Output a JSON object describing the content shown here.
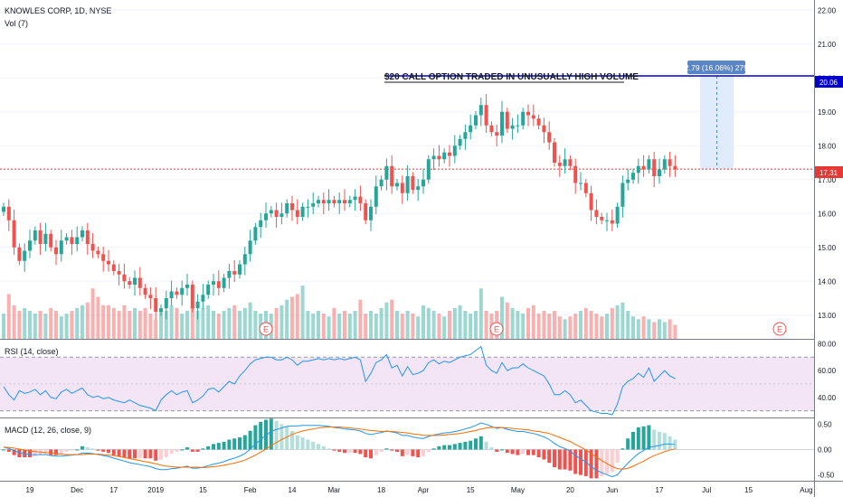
{
  "header": {
    "symbol": "KNOWLES CORP, 1D, NYSE",
    "volume_label": "Vol (7)",
    "annotation": "$20 CALL OPTION TRADED IN UNUSUALLY HIGH VOLUME",
    "measure_label": "2.79 (16.06%) 279",
    "last_price_label": "17.31",
    "target_price_label": "20.06",
    "earnings_marker": "E"
  },
  "colors": {
    "up": "#26a69a",
    "down": "#ef5350",
    "rsi_line": "#2196f3",
    "macd_line": "#2196f3",
    "signal_line": "#ff6d00",
    "target_line": "#0000cc",
    "last_price": "#e53935",
    "rsi_band": "#f3e5f5",
    "measure_box": "#dbe9fb"
  },
  "chart_data": [
    {
      "type": "candlestick",
      "title": "KNOWLES CORP, 1D, NYSE",
      "ylim": [
        12.3,
        22.3
      ],
      "yticks": [
        "13.00",
        "14.00",
        "15.00",
        "16.00",
        "17.00",
        "18.00",
        "19.00",
        "20.00",
        "21.00",
        "22.00"
      ],
      "xticks": [
        "19",
        "Dec",
        "17",
        "2019",
        "15",
        "Feb",
        "14",
        "Mar",
        "18",
        "Apr",
        "15",
        "May",
        "20",
        "Jun",
        "17",
        "Jul",
        "15",
        "Aug"
      ],
      "close": [
        16.2,
        15.8,
        15.0,
        14.6,
        14.9,
        15.2,
        15.5,
        15.1,
        15.4,
        15.0,
        14.8,
        15.2,
        15.3,
        15.1,
        15.3,
        15.5,
        15.1,
        14.9,
        14.8,
        14.6,
        14.5,
        14.3,
        14.2,
        14.0,
        13.9,
        14.1,
        13.8,
        13.6,
        13.5,
        13.1,
        13.2,
        13.5,
        13.7,
        13.6,
        13.8,
        13.9,
        13.2,
        13.4,
        13.6,
        13.9,
        14.0,
        13.8,
        14.1,
        14.3,
        14.2,
        14.5,
        14.8,
        15.2,
        15.6,
        15.8,
        16.0,
        16.1,
        15.9,
        16.0,
        16.3,
        16.1,
        15.9,
        16.2,
        16.2,
        16.3,
        16.4,
        16.3,
        16.4,
        16.3,
        16.4,
        16.3,
        16.4,
        16.5,
        16.3,
        15.8,
        16.2,
        16.8,
        17.0,
        17.4,
        16.8,
        16.9,
        16.6,
        17.1,
        16.7,
        16.8,
        17.0,
        17.6,
        17.7,
        17.6,
        17.8,
        17.7,
        18.0,
        18.2,
        18.4,
        18.6,
        18.9,
        19.2,
        18.6,
        18.4,
        18.3,
        19.0,
        18.5,
        18.6,
        18.6,
        19.0,
        18.9,
        18.8,
        18.6,
        18.4,
        18.1,
        17.5,
        17.4,
        17.6,
        17.4,
        16.9,
        16.9,
        16.6,
        16.1,
        15.9,
        15.8,
        15.8,
        15.7,
        16.2,
        16.9,
        17.0,
        17.2,
        17.4,
        17.3,
        17.6,
        17.1,
        17.3,
        17.6,
        17.4,
        17.3
      ],
      "volume_relative": [
        0.45,
        0.8,
        0.6,
        0.5,
        0.55,
        0.5,
        0.45,
        0.5,
        0.45,
        0.55,
        0.5,
        0.4,
        0.45,
        0.5,
        0.55,
        0.6,
        0.65,
        0.9,
        0.75,
        0.6,
        0.6,
        0.55,
        0.5,
        0.6,
        0.5,
        0.55,
        0.5,
        0.55,
        0.45,
        0.35,
        0.55,
        0.5,
        0.6,
        0.55,
        0.45,
        0.5,
        0.6,
        0.5,
        0.55,
        0.6,
        0.5,
        0.45,
        0.5,
        0.55,
        0.6,
        0.5,
        0.55,
        0.65,
        0.5,
        0.45,
        0.5,
        0.45,
        0.55,
        0.6,
        0.7,
        0.75,
        0.8,
        0.95,
        0.5,
        0.45,
        0.5,
        0.45,
        0.4,
        0.55,
        0.45,
        0.5,
        0.45,
        0.5,
        0.7,
        0.45,
        0.5,
        0.45,
        0.55,
        0.65,
        0.7,
        0.5,
        0.45,
        0.5,
        0.45,
        0.4,
        0.6,
        0.55,
        0.5,
        0.45,
        0.4,
        0.5,
        0.55,
        0.6,
        0.5,
        0.45,
        0.5,
        0.9,
        0.5,
        0.45,
        0.5,
        0.75,
        0.65,
        0.55,
        0.5,
        0.45,
        0.55,
        0.6,
        0.45,
        0.5,
        0.45,
        0.5,
        0.4,
        0.35,
        0.4,
        0.45,
        0.5,
        0.55,
        0.5,
        0.45,
        0.4,
        0.45,
        0.55,
        0.6,
        0.65,
        0.5,
        0.4,
        0.35,
        0.4,
        0.35,
        0.3,
        0.35,
        0.3,
        0.35,
        0.25
      ],
      "target_price": 20.06,
      "last_price": 17.31
    },
    {
      "type": "line",
      "title": "RSI (14, close)",
      "ylim": [
        25,
        83
      ],
      "yticks": [
        "40.00",
        "60.00",
        "80.00"
      ],
      "band": [
        30,
        70
      ],
      "values": [
        48,
        42,
        38,
        45,
        43,
        44,
        46,
        42,
        45,
        40,
        39,
        44,
        46,
        43,
        45,
        47,
        42,
        40,
        41,
        39,
        40,
        38,
        37,
        36,
        38,
        36,
        34,
        33,
        32,
        30,
        38,
        42,
        45,
        42,
        44,
        45,
        36,
        38,
        41,
        46,
        47,
        44,
        48,
        52,
        50,
        56,
        60,
        65,
        68,
        69,
        70,
        70,
        68,
        68,
        70,
        68,
        64,
        67,
        67,
        68,
        69,
        68,
        69,
        68,
        69,
        68,
        69,
        70,
        68,
        52,
        58,
        66,
        68,
        72,
        62,
        64,
        56,
        63,
        57,
        58,
        60,
        66,
        68,
        65,
        67,
        66,
        68,
        70,
        71,
        72,
        75,
        78,
        64,
        60,
        58,
        66,
        60,
        62,
        62,
        65,
        62,
        60,
        58,
        56,
        50,
        42,
        42,
        45,
        42,
        36,
        38,
        34,
        30,
        29,
        28,
        28,
        27,
        35,
        48,
        52,
        54,
        58,
        55,
        62,
        52,
        56,
        60,
        56,
        54
      ]
    },
    {
      "type": "line",
      "title": "MACD (12, 26, close, 9)",
      "ylim": [
        -0.62,
        0.62
      ],
      "yticks": [
        "0.50",
        "0.00",
        "-0.50"
      ],
      "macd": [
        0.05,
        0.02,
        -0.02,
        -0.06,
        -0.08,
        -0.1,
        -0.1,
        -0.1,
        -0.1,
        -0.12,
        -0.13,
        -0.13,
        -0.12,
        -0.11,
        -0.1,
        -0.07,
        -0.07,
        -0.08,
        -0.1,
        -0.12,
        -0.14,
        -0.17,
        -0.2,
        -0.23,
        -0.26,
        -0.28,
        -0.3,
        -0.32,
        -0.34,
        -0.38,
        -0.4,
        -0.4,
        -0.38,
        -0.37,
        -0.35,
        -0.33,
        -0.37,
        -0.37,
        -0.35,
        -0.32,
        -0.29,
        -0.27,
        -0.24,
        -0.2,
        -0.17,
        -0.13,
        -0.08,
        0.01,
        0.11,
        0.2,
        0.28,
        0.36,
        0.4,
        0.43,
        0.46,
        0.47,
        0.47,
        0.48,
        0.48,
        0.48,
        0.48,
        0.47,
        0.46,
        0.44,
        0.43,
        0.41,
        0.4,
        0.39,
        0.37,
        0.32,
        0.3,
        0.32,
        0.34,
        0.37,
        0.35,
        0.33,
        0.28,
        0.28,
        0.25,
        0.23,
        0.22,
        0.26,
        0.29,
        0.31,
        0.33,
        0.34,
        0.36,
        0.38,
        0.41,
        0.44,
        0.48,
        0.53,
        0.5,
        0.46,
        0.42,
        0.44,
        0.4,
        0.38,
        0.36,
        0.36,
        0.34,
        0.32,
        0.29,
        0.25,
        0.2,
        0.12,
        0.06,
        0.02,
        -0.03,
        -0.12,
        -0.18,
        -0.25,
        -0.34,
        -0.41,
        -0.46,
        -0.5,
        -0.54,
        -0.5,
        -0.38,
        -0.27,
        -0.17,
        -0.08,
        -0.02,
        0.05,
        0.06,
        0.08,
        0.11,
        0.11,
        0.1
      ],
      "signal": [
        0.05,
        0.04,
        0.03,
        0.01,
        -0.01,
        -0.03,
        -0.04,
        -0.05,
        -0.06,
        -0.07,
        -0.08,
        -0.09,
        -0.1,
        -0.1,
        -0.1,
        -0.1,
        -0.09,
        -0.09,
        -0.09,
        -0.1,
        -0.11,
        -0.12,
        -0.14,
        -0.16,
        -0.18,
        -0.2,
        -0.22,
        -0.24,
        -0.26,
        -0.28,
        -0.31,
        -0.33,
        -0.34,
        -0.35,
        -0.35,
        -0.35,
        -0.35,
        -0.35,
        -0.36,
        -0.35,
        -0.34,
        -0.33,
        -0.31,
        -0.29,
        -0.27,
        -0.24,
        -0.21,
        -0.16,
        -0.11,
        -0.05,
        0.01,
        0.08,
        0.14,
        0.2,
        0.25,
        0.3,
        0.34,
        0.37,
        0.39,
        0.41,
        0.43,
        0.44,
        0.45,
        0.45,
        0.45,
        0.44,
        0.43,
        0.42,
        0.41,
        0.39,
        0.38,
        0.37,
        0.36,
        0.36,
        0.36,
        0.35,
        0.34,
        0.33,
        0.31,
        0.3,
        0.28,
        0.28,
        0.28,
        0.28,
        0.29,
        0.3,
        0.31,
        0.32,
        0.34,
        0.36,
        0.38,
        0.41,
        0.43,
        0.44,
        0.44,
        0.44,
        0.43,
        0.42,
        0.41,
        0.4,
        0.39,
        0.37,
        0.36,
        0.34,
        0.32,
        0.28,
        0.24,
        0.2,
        0.16,
        0.1,
        0.05,
        -0.01,
        -0.08,
        -0.15,
        -0.22,
        -0.28,
        -0.34,
        -0.38,
        -0.39,
        -0.37,
        -0.33,
        -0.28,
        -0.23,
        -0.17,
        -0.12,
        -0.08,
        -0.04,
        -0.01,
        0.01
      ]
    }
  ]
}
